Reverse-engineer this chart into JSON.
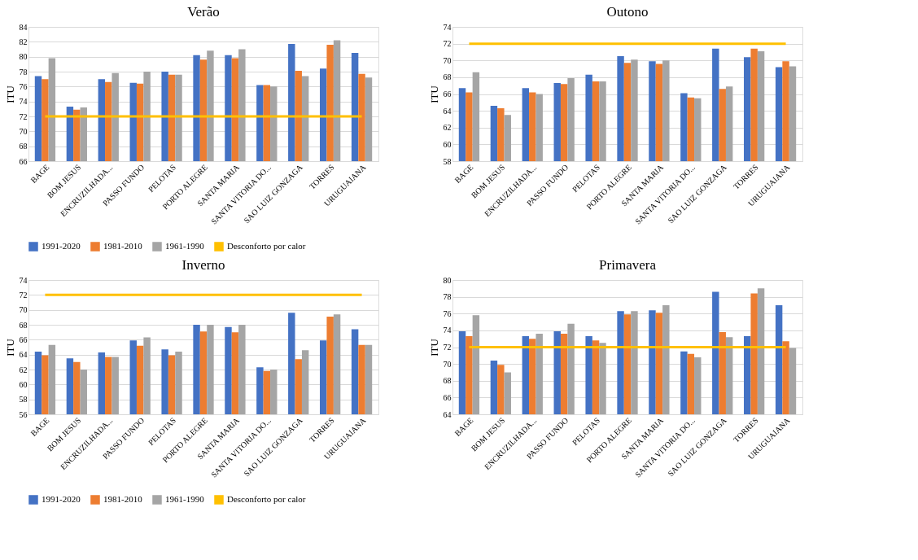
{
  "chart_data": [
    {
      "type": "bar",
      "title": "Verão",
      "ylabel": "ITU",
      "categories": [
        "BAGE",
        "BOM JESUS",
        "ENCRUZILHADA...",
        "PASSO FUNDO",
        "PELOTAS",
        "PORTO ALEGRE",
        "SANTA MARIA",
        "SANTA VITORIA DO...",
        "SAO LUIZ GONZAGA",
        "TORRES",
        "URUGUAIANA"
      ],
      "ylim": [
        66,
        84
      ],
      "yticks": [
        66,
        68,
        70,
        72,
        74,
        76,
        78,
        80,
        82,
        84
      ],
      "grid": "y",
      "legend": "bottom",
      "series": [
        {
          "name": "1991-2020",
          "color": "#4472c4",
          "values": [
            77.4,
            73.3,
            77.0,
            76.5,
            78.0,
            80.2,
            80.2,
            76.2,
            81.7,
            78.4,
            80.5
          ]
        },
        {
          "name": "1981-2010",
          "color": "#ed7d31",
          "values": [
            77.0,
            72.9,
            76.6,
            76.4,
            77.6,
            79.6,
            79.8,
            76.2,
            78.1,
            81.6,
            77.7
          ]
        },
        {
          "name": "1961-1990",
          "color": "#a5a5a5",
          "values": [
            79.8,
            73.2,
            77.8,
            78.0,
            77.6,
            80.8,
            81.0,
            76.0,
            77.4,
            82.2,
            77.2
          ]
        },
        {
          "name": "Desconforto por calor",
          "color": "#ffc000",
          "type": "line",
          "values": [
            72,
            72,
            72,
            72,
            72,
            72,
            72,
            72,
            72,
            72,
            72
          ]
        }
      ]
    },
    {
      "type": "bar",
      "title": "Outono",
      "ylabel": "ITU",
      "categories": [
        "BAGE",
        "BOM JESUS",
        "ENCRUZILHADA...",
        "PASSO FUNDO",
        "PELOTAS",
        "PORTO ALEGRE",
        "SANTA MARIA",
        "SANTA VITORIA DO...",
        "SAO LUIZ GONZAGA",
        "TORRES",
        "URUGUAIANA"
      ],
      "ylim": [
        58,
        74
      ],
      "yticks": [
        58,
        60,
        62,
        64,
        66,
        68,
        70,
        72,
        74
      ],
      "grid": "y",
      "legend": "bottom",
      "series": [
        {
          "name": "1991-2020",
          "color": "#4472c4",
          "values": [
            66.7,
            64.6,
            66.7,
            67.3,
            68.3,
            70.5,
            69.9,
            66.1,
            71.4,
            70.4,
            69.2
          ]
        },
        {
          "name": "1981-2010",
          "color": "#ed7d31",
          "values": [
            66.2,
            64.3,
            66.2,
            67.2,
            67.5,
            69.7,
            69.6,
            65.6,
            66.6,
            71.4,
            69.9
          ]
        },
        {
          "name": "1961-1990",
          "color": "#a5a5a5",
          "values": [
            68.6,
            63.5,
            66.0,
            67.9,
            67.5,
            70.1,
            70.0,
            65.5,
            66.9,
            71.1,
            69.3
          ]
        },
        {
          "name": "Desconforto por calor",
          "color": "#ffc000",
          "type": "line",
          "values": [
            72,
            72,
            72,
            72,
            72,
            72,
            72,
            72,
            72,
            72,
            72
          ]
        }
      ]
    },
    {
      "type": "bar",
      "title": "Inverno",
      "ylabel": "ITU",
      "categories": [
        "BAGE",
        "BOM JESUS",
        "ENCRUZILHADA...",
        "PASSO FUNDO",
        "PELOTAS",
        "PORTO ALEGRE",
        "SANTA MARIA",
        "SANTA VITORIA DO...",
        "SAO LUIZ GONZAGA",
        "TORRES",
        "URUGUAIANA"
      ],
      "ylim": [
        56,
        74
      ],
      "yticks": [
        56,
        58,
        60,
        62,
        64,
        66,
        68,
        70,
        72,
        74
      ],
      "grid": "y",
      "legend": "bottom",
      "series": [
        {
          "name": "1991-2020",
          "color": "#4472c4",
          "values": [
            64.4,
            63.5,
            64.3,
            65.9,
            64.7,
            68.0,
            67.7,
            62.3,
            69.6,
            65.9,
            67.4
          ]
        },
        {
          "name": "1981-2010",
          "color": "#ed7d31",
          "values": [
            63.9,
            63.0,
            63.7,
            65.2,
            63.9,
            67.1,
            67.0,
            61.8,
            63.4,
            69.1,
            65.3
          ]
        },
        {
          "name": "1961-1990",
          "color": "#a5a5a5",
          "values": [
            65.3,
            62.0,
            63.7,
            66.3,
            64.4,
            68.0,
            68.0,
            62.0,
            64.6,
            69.4,
            65.3
          ]
        },
        {
          "name": "Desconforto por calor",
          "color": "#ffc000",
          "type": "line",
          "values": [
            72,
            72,
            72,
            72,
            72,
            72,
            72,
            72,
            72,
            72,
            72
          ]
        }
      ]
    },
    {
      "type": "bar",
      "title": "Primavera",
      "ylabel": "ITU",
      "categories": [
        "BAGE",
        "BOM JESUS",
        "ENCRUZILHADA...",
        "PASSO FUNDO",
        "PELOTAS",
        "PORTO ALEGRE",
        "SANTA MARIA",
        "SANTA VITORIA DO...",
        "SAO LUIZ GONZAGA",
        "TORRES",
        "URUGUAIANA"
      ],
      "ylim": [
        64,
        80
      ],
      "yticks": [
        64,
        66,
        68,
        70,
        72,
        74,
        76,
        78,
        80
      ],
      "grid": "y",
      "legend": "bottom",
      "series": [
        {
          "name": "1991-2020",
          "color": "#4472c4",
          "values": [
            73.9,
            70.4,
            73.3,
            73.9,
            73.3,
            76.3,
            76.4,
            71.5,
            78.6,
            73.3,
            77.0
          ]
        },
        {
          "name": "1981-2010",
          "color": "#ed7d31",
          "values": [
            73.3,
            69.9,
            73.0,
            73.6,
            72.8,
            75.9,
            76.1,
            71.2,
            73.8,
            78.4,
            72.7
          ]
        },
        {
          "name": "1961-1990",
          "color": "#a5a5a5",
          "values": [
            75.8,
            69.0,
            73.6,
            74.8,
            72.5,
            76.3,
            77.0,
            70.8,
            73.2,
            79.0,
            71.9
          ]
        },
        {
          "name": "Desconforto por calor",
          "color": "#ffc000",
          "type": "line",
          "values": [
            72,
            72,
            72,
            72,
            72,
            72,
            72,
            72,
            72,
            72,
            72
          ]
        }
      ]
    }
  ]
}
